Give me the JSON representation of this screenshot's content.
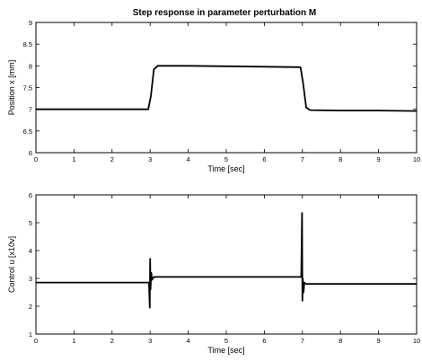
{
  "chart_data": [
    {
      "type": "line",
      "title": "Step response in parameter perturbation M",
      "xlabel": "Time [sec]",
      "ylabel": "Position x [mm]",
      "xlim": [
        0,
        10
      ],
      "ylim": [
        6,
        9
      ],
      "xticks": [
        "0",
        "1",
        "2",
        "3",
        "4",
        "5",
        "6",
        "7",
        "8",
        "9",
        "10"
      ],
      "yticks": [
        "6",
        "6.5",
        "7",
        "7.5",
        "8",
        "8.5",
        "9"
      ],
      "grid": false,
      "series": [
        {
          "x": [
            0,
            2.95,
            3.02,
            3.1,
            3.2,
            4,
            5,
            6,
            6.95,
            7.02,
            7.1,
            7.2,
            8,
            9,
            10
          ],
          "y": [
            7.0,
            7.0,
            7.3,
            7.92,
            8.0,
            8.0,
            7.99,
            7.98,
            7.97,
            7.6,
            7.04,
            6.98,
            6.97,
            6.97,
            6.96
          ]
        }
      ]
    },
    {
      "type": "line",
      "title": "",
      "xlabel": "Time [sec]",
      "ylabel": "Control u [x10v]",
      "xlim": [
        0,
        10
      ],
      "ylim": [
        1,
        6
      ],
      "xticks": [
        "0",
        "1",
        "2",
        "3",
        "4",
        "5",
        "6",
        "7",
        "8",
        "9",
        "10"
      ],
      "yticks": [
        "1",
        "2",
        "3",
        "4",
        "5",
        "6"
      ],
      "grid": false,
      "series": [
        {
          "x": [
            0,
            2.97,
            2.99,
            3.0,
            3.01,
            3.03,
            3.05,
            3.1,
            4,
            5,
            6,
            6.97,
            6.99,
            7.0,
            7.01,
            7.03,
            7.05,
            7.1,
            8,
            9,
            10
          ],
          "y": [
            2.85,
            2.85,
            1.95,
            3.7,
            2.6,
            3.2,
            2.95,
            3.05,
            3.05,
            3.05,
            3.05,
            3.05,
            5.35,
            2.2,
            3.0,
            2.5,
            2.85,
            2.8,
            2.8,
            2.8,
            2.8
          ]
        }
      ]
    }
  ]
}
